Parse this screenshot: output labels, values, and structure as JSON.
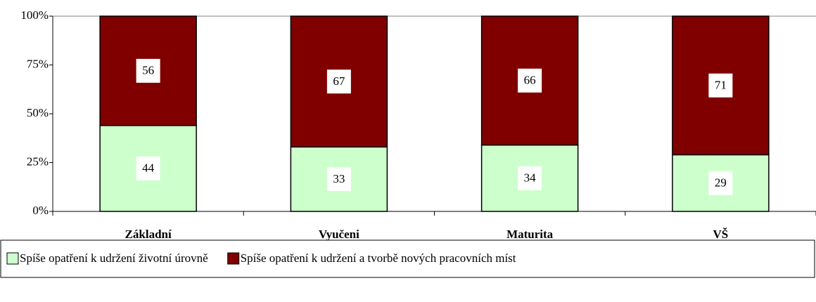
{
  "chart_data": {
    "type": "stacked_bar",
    "categories": [
      "Základní",
      "Vyučeni",
      "Maturita",
      "VŠ"
    ],
    "series": [
      {
        "name": "Spíše opatření k udržení životní úrovně",
        "color": "#ccffcc",
        "values": [
          44,
          33,
          34,
          29
        ]
      },
      {
        "name": "Spíše opatření k udržení a tvorbě nových pracovních míst",
        "color": "#800000",
        "values": [
          56,
          67,
          66,
          71
        ]
      }
    ],
    "ylim": [
      0,
      100
    ],
    "yticks": [
      {
        "value": 0,
        "label": "0%"
      },
      {
        "value": 25,
        "label": "25%"
      },
      {
        "value": 50,
        "label": "50%"
      },
      {
        "value": 75,
        "label": "75%"
      },
      {
        "value": 100,
        "label": "100%"
      }
    ],
    "legend": "bottom"
  }
}
